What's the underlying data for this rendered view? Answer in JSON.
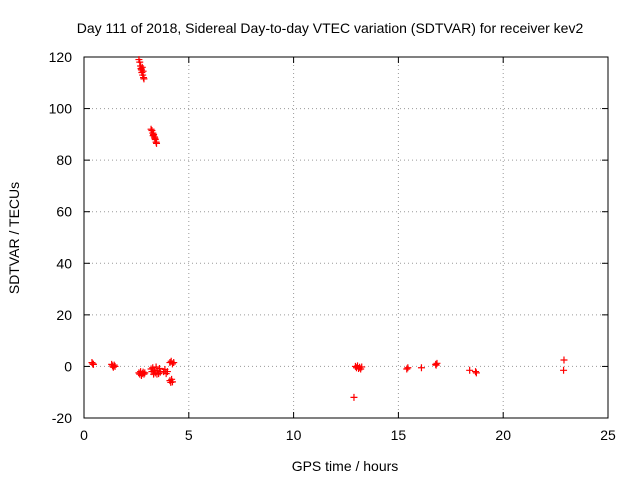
{
  "chart_data": {
    "type": "scatter",
    "title": "Day 111 of 2018, Sidereal Day-to-day VTEC variation (SDTVAR) for receiver kev2",
    "xlabel": "GPS time / hours",
    "ylabel": "SDTVAR / TECUs",
    "xlim": [
      0,
      25
    ],
    "ylim": [
      -20,
      120
    ],
    "xticks": [
      0,
      5,
      10,
      15,
      20,
      25
    ],
    "yticks": [
      -20,
      0,
      20,
      40,
      60,
      80,
      100,
      120
    ],
    "grid": true,
    "marker": "+",
    "color": "#ff0000",
    "series": [
      {
        "name": "SDTVAR",
        "points": [
          [
            0.38,
            1.5
          ],
          [
            0.42,
            1.0
          ],
          [
            0.45,
            0.8
          ],
          [
            1.32,
            0.8
          ],
          [
            1.36,
            0.2
          ],
          [
            1.4,
            -0.3
          ],
          [
            1.44,
            0.5
          ],
          [
            1.48,
            0.0
          ],
          [
            2.62,
            119
          ],
          [
            2.66,
            118
          ],
          [
            2.7,
            116.5
          ],
          [
            2.72,
            115.5
          ],
          [
            2.74,
            115
          ],
          [
            2.76,
            114
          ],
          [
            2.8,
            113
          ],
          [
            2.84,
            112
          ],
          [
            2.86,
            111.5
          ],
          [
            2.78,
            116
          ],
          [
            2.82,
            114.5
          ],
          [
            2.62,
            -2.5
          ],
          [
            2.66,
            -3.0
          ],
          [
            2.7,
            -2.0
          ],
          [
            2.74,
            -3.5
          ],
          [
            2.78,
            -2.8
          ],
          [
            2.82,
            -2.2
          ],
          [
            2.86,
            -3.0
          ],
          [
            2.9,
            -2.5
          ],
          [
            3.2,
            92
          ],
          [
            3.24,
            91.5
          ],
          [
            3.28,
            90.5
          ],
          [
            3.32,
            90
          ],
          [
            3.36,
            89
          ],
          [
            3.4,
            88
          ],
          [
            3.44,
            87
          ],
          [
            3.46,
            86.5
          ],
          [
            3.3,
            89.5
          ],
          [
            3.38,
            88.5
          ],
          [
            3.2,
            -1.0
          ],
          [
            3.24,
            -2.0
          ],
          [
            3.28,
            -0.5
          ],
          [
            3.32,
            -3.0
          ],
          [
            3.36,
            -1.5
          ],
          [
            3.4,
            -2.5
          ],
          [
            3.44,
            -0.2
          ],
          [
            3.48,
            -3.0
          ],
          [
            3.52,
            -1.8
          ],
          [
            3.56,
            -2.8
          ],
          [
            3.6,
            -0.8
          ],
          [
            3.64,
            -2.2
          ],
          [
            3.8,
            -2.0
          ],
          [
            3.86,
            -1.2
          ],
          [
            3.92,
            -2.8
          ],
          [
            3.98,
            -2.0
          ],
          [
            4.1,
            -5.5
          ],
          [
            4.14,
            -6.2
          ],
          [
            4.18,
            -5.0
          ],
          [
            4.22,
            -6.0
          ],
          [
            4.1,
            1.5
          ],
          [
            4.16,
            2.0
          ],
          [
            4.22,
            1.0
          ],
          [
            4.28,
            1.5
          ],
          [
            12.88,
            -12.0
          ],
          [
            12.95,
            0.0
          ],
          [
            13.0,
            -0.5
          ],
          [
            13.05,
            0.2
          ],
          [
            13.1,
            -0.8
          ],
          [
            13.15,
            -0.3
          ],
          [
            13.2,
            -1.0
          ],
          [
            13.25,
            -0.2
          ],
          [
            15.4,
            -1.0
          ],
          [
            15.45,
            -0.5
          ],
          [
            16.1,
            -0.5
          ],
          [
            16.8,
            0.5
          ],
          [
            16.84,
            1.2
          ],
          [
            16.78,
            0.8
          ],
          [
            18.4,
            -1.5
          ],
          [
            18.68,
            -2.0
          ],
          [
            18.72,
            -2.5
          ],
          [
            22.9,
            2.5
          ],
          [
            22.88,
            -1.5
          ]
        ]
      }
    ]
  }
}
